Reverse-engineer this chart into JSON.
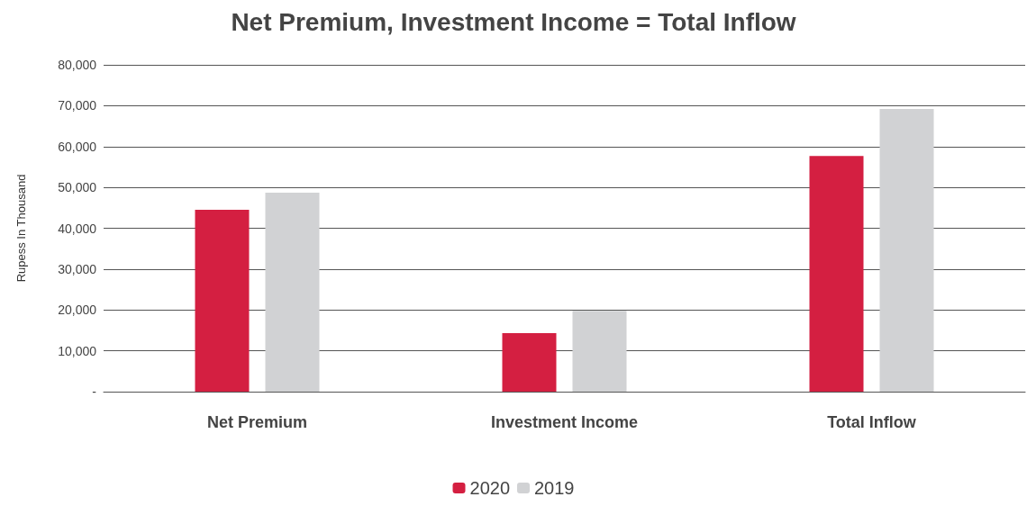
{
  "chart_data": {
    "type": "bar",
    "title": "Net Premium, Investment Income = Total Inflow",
    "ylabel": "Rupess In Thousand",
    "categories": [
      "Net Premium",
      "Investment Income",
      "Total Inflow"
    ],
    "series": [
      {
        "name": "2020",
        "color": "#d41f41",
        "values": [
          44500,
          14300,
          57700
        ]
      },
      {
        "name": "2019",
        "color": "#d1d2d4",
        "values": [
          48700,
          19800,
          69200
        ]
      }
    ],
    "ylim": [
      0,
      80000
    ],
    "yticks": [
      {
        "value": 0,
        "label": "-"
      },
      {
        "value": 10000,
        "label": "10,000"
      },
      {
        "value": 20000,
        "label": "20,000"
      },
      {
        "value": 30000,
        "label": "30,000"
      },
      {
        "value": 40000,
        "label": "40,000"
      },
      {
        "value": 50000,
        "label": "50,000"
      },
      {
        "value": 60000,
        "label": "60,000"
      },
      {
        "value": 70000,
        "label": "70,000"
      },
      {
        "value": 80000,
        "label": "80,000"
      }
    ],
    "grid": "y",
    "legend": "bottom"
  }
}
